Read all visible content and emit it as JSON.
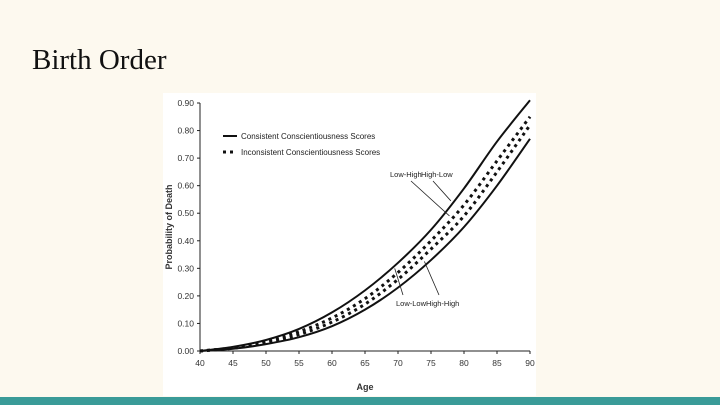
{
  "slide": {
    "title": "Birth Order",
    "accent_color": "#3a9b98",
    "background_color": "#fdf9ef"
  },
  "chart_data": {
    "type": "line",
    "xlabel": "Age",
    "ylabel": "Probability of Death",
    "xlim": [
      40,
      90
    ],
    "ylim": [
      0,
      0.9
    ],
    "xticks": [
      "40",
      "45",
      "50",
      "55",
      "60",
      "65",
      "70",
      "75",
      "80",
      "85",
      "90"
    ],
    "yticks": [
      "0.00",
      "0.10",
      "0.20",
      "0.30",
      "0.40",
      "0.50",
      "0.60",
      "0.70",
      "0.80",
      "0.90"
    ],
    "grid": false,
    "legend_position": "top-left",
    "legend": [
      {
        "label": "Consistent Conscientiousness Scores",
        "style": "solid"
      },
      {
        "label": "Inconsistent Conscientiousness Scores",
        "style": "dashed"
      }
    ],
    "series": [
      {
        "name": "High-Low",
        "style": "solid",
        "x": [
          40,
          45,
          50,
          55,
          60,
          65,
          70,
          75,
          80,
          85,
          90
        ],
        "y": [
          0.0,
          0.015,
          0.04,
          0.08,
          0.14,
          0.22,
          0.32,
          0.44,
          0.59,
          0.76,
          0.91
        ]
      },
      {
        "name": "Low-High",
        "style": "dashed",
        "x": [
          40,
          45,
          50,
          55,
          60,
          65,
          70,
          75,
          80,
          85,
          90
        ],
        "y": [
          0.0,
          0.012,
          0.035,
          0.07,
          0.12,
          0.19,
          0.285,
          0.4,
          0.53,
          0.69,
          0.85
        ]
      },
      {
        "name": "High-High",
        "style": "dashed",
        "x": [
          40,
          45,
          50,
          55,
          60,
          65,
          70,
          75,
          80,
          85,
          90
        ],
        "y": [
          0.0,
          0.01,
          0.03,
          0.06,
          0.105,
          0.17,
          0.26,
          0.37,
          0.49,
          0.65,
          0.82
        ]
      },
      {
        "name": "Low-Low",
        "style": "solid",
        "x": [
          40,
          45,
          50,
          55,
          60,
          65,
          70,
          75,
          80,
          85,
          90
        ],
        "y": [
          0.0,
          0.008,
          0.025,
          0.05,
          0.09,
          0.15,
          0.23,
          0.33,
          0.45,
          0.6,
          0.77
        ]
      }
    ],
    "annotations": [
      {
        "text": "Low-High",
        "x": 77.8,
        "y": 0.49
      },
      {
        "text": "High-Low",
        "x": 78.0,
        "y": 0.545
      },
      {
        "text": "Low-Low",
        "x": 69.5,
        "y": 0.3
      },
      {
        "text": "High-High",
        "x": 74.0,
        "y": 0.325
      }
    ]
  }
}
